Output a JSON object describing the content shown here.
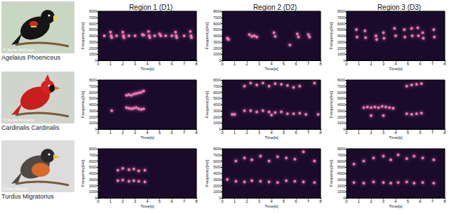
{
  "columns": [
    "Region 1 (D1)",
    "Region 2 (D2)",
    "Region 3 (D3)"
  ],
  "rows": [
    {
      "species": "Agelaius Phoeniceus",
      "credit": "© Suzie McCann"
    },
    {
      "species": "Cardinalis Cardinalis",
      "credit": "© Suzie McCann"
    },
    {
      "species": "Turdus Migratorius",
      "credit": "©Alex Eberts"
    }
  ],
  "chart_data": [
    {
      "type": "scatter",
      "x_label": "Time[s]",
      "y_label": "Frequency[Hz]",
      "xlim": [
        0,
        8
      ],
      "xticks": [
        0,
        1,
        2,
        3,
        4,
        5,
        6,
        7,
        8
      ],
      "ylim": [
        0,
        8000
      ],
      "yticks": [
        0,
        1000,
        2000,
        3000,
        4000,
        5000,
        6000,
        7000,
        8000
      ],
      "grid": false,
      "color": "#f27cb4",
      "x": [
        1.0,
        1.05,
        1.1,
        2.0,
        2.05,
        2.1,
        3.6,
        3.7,
        4.1,
        4.15,
        4.2,
        5.0,
        5.1,
        6.3,
        6.35,
        6.4,
        7.5,
        7.55,
        7.6,
        0.5,
        1.5,
        2.5,
        3.0,
        4.6,
        5.5,
        6.0,
        7.0
      ],
      "values": [
        4600,
        4000,
        3700,
        4600,
        4000,
        3700,
        4200,
        4100,
        4700,
        4000,
        3700,
        4300,
        4000,
        4600,
        4000,
        3700,
        4700,
        4000,
        3700,
        4000,
        4000,
        4000,
        4000,
        4000,
        4000,
        4000,
        4000
      ]
    },
    {
      "type": "scatter",
      "x_label": "Time[s]",
      "y_label": "Frequency[Hz]",
      "xlim": [
        0,
        8
      ],
      "xticks": [
        0,
        1,
        2,
        3,
        4,
        5,
        6,
        7,
        8
      ],
      "ylim": [
        0,
        8000
      ],
      "yticks": [
        0,
        1000,
        2000,
        3000,
        4000,
        5000,
        6000,
        7000,
        8000
      ],
      "grid": false,
      "color": "#f27cb4",
      "x": [
        0.4,
        0.5,
        2.2,
        2.4,
        2.6,
        2.8,
        4.2,
        4.3,
        5.5,
        6.1,
        6.2,
        7.0,
        7.1
      ],
      "values": [
        3600,
        3400,
        4200,
        3900,
        4000,
        3800,
        4500,
        3900,
        2500,
        4300,
        3800,
        4200,
        3800
      ]
    },
    {
      "type": "scatter",
      "x_label": "Time[s]",
      "y_label": "Frequency[Hz]",
      "xlim": [
        0,
        8
      ],
      "xticks": [
        0,
        1,
        2,
        3,
        4,
        5,
        6,
        7,
        8
      ],
      "ylim": [
        0,
        8000
      ],
      "yticks": [
        0,
        1000,
        2000,
        3000,
        4000,
        5000,
        6000,
        7000,
        8000
      ],
      "grid": false,
      "color": "#f27cb4",
      "x": [
        0.8,
        0.85,
        1.5,
        1.55,
        2.4,
        2.45,
        3.0,
        3.05,
        3.9,
        4.0,
        4.7,
        4.75,
        5.3,
        5.35,
        5.8,
        5.85,
        6.2,
        6.25,
        7.1,
        7.15
      ],
      "values": [
        5000,
        3800,
        4800,
        3700,
        4000,
        3400,
        4500,
        3600,
        5200,
        4000,
        5000,
        3800,
        5200,
        4000,
        5300,
        4000,
        4500,
        3600,
        5000,
        3800
      ]
    },
    {
      "type": "scatter",
      "x_label": "Time[s]",
      "y_label": "Frequency[Hz]",
      "xlim": [
        0,
        8
      ],
      "xticks": [
        0,
        1,
        2,
        3,
        4,
        5,
        6,
        7,
        8
      ],
      "ylim": [
        0,
        8000
      ],
      "yticks": [
        0,
        1000,
        2000,
        3000,
        4000,
        5000,
        6000,
        7000,
        8000
      ],
      "grid": false,
      "color": "#f27cb4",
      "x": [
        2.3,
        2.3,
        2.5,
        2.5,
        2.7,
        2.7,
        2.9,
        2.9,
        3.1,
        3.1,
        3.3,
        3.3,
        3.5,
        3.5,
        3.7,
        3.7,
        1.1
      ],
      "values": [
        5500,
        3500,
        5600,
        3400,
        5500,
        3300,
        5700,
        3400,
        5800,
        3500,
        5900,
        3300,
        6000,
        3200,
        6200,
        3300,
        3000
      ]
    },
    {
      "type": "scatter",
      "x_label": "Time[s]",
      "y_label": "Frequency[Hz]",
      "xlim": [
        0,
        8
      ],
      "xticks": [
        0,
        1,
        2,
        3,
        4,
        5,
        6,
        7,
        8
      ],
      "ylim": [
        0,
        8000
      ],
      "yticks": [
        0,
        1000,
        2000,
        3000,
        4000,
        5000,
        6000,
        7000,
        8000
      ],
      "grid": false,
      "color": "#f27cb4",
      "x": [
        1.8,
        1.8,
        2.3,
        2.3,
        2.8,
        2.8,
        3.3,
        3.3,
        3.8,
        3.8,
        4.3,
        4.3,
        4.8,
        4.8,
        5.3,
        5.3,
        5.8,
        5.8,
        6.3,
        6.3,
        7.5,
        0.8,
        1.0,
        4.0,
        6.8,
        7.8
      ],
      "values": [
        7000,
        3000,
        7500,
        3000,
        7200,
        2800,
        7500,
        3000,
        7000,
        2800,
        7400,
        2700,
        7300,
        2800,
        7100,
        2500,
        6800,
        2500,
        7000,
        2600,
        7500,
        2400,
        2400,
        2300,
        2400,
        2400
      ]
    },
    {
      "type": "scatter",
      "x_label": "Time[s]",
      "y_label": "Frequency[Hz]",
      "xlim": [
        0,
        8
      ],
      "xticks": [
        0,
        1,
        2,
        3,
        4,
        5,
        6,
        7,
        8
      ],
      "ylim": [
        0,
        8000
      ],
      "yticks": [
        0,
        1000,
        2000,
        3000,
        4000,
        5000,
        6000,
        7000,
        8000
      ],
      "grid": false,
      "color": "#f27cb4",
      "x": [
        1.4,
        1.7,
        2.0,
        2.3,
        2.6,
        2.9,
        3.2,
        3.5,
        3.8,
        4.9,
        4.9,
        5.3,
        5.3,
        5.7,
        5.7,
        6.1,
        6.1,
        2.0,
        3.0
      ],
      "values": [
        3500,
        3600,
        3500,
        3600,
        3500,
        3700,
        3600,
        3500,
        3400,
        7000,
        2500,
        7200,
        2400,
        7300,
        2500,
        7400,
        2600,
        2200,
        2200
      ]
    },
    {
      "type": "scatter",
      "x_label": "Time[s]",
      "y_label": "Frequency[Hz]",
      "xlim": [
        0,
        8
      ],
      "xticks": [
        0,
        1,
        2,
        3,
        4,
        5,
        6,
        7,
        8
      ],
      "ylim": [
        0,
        8000
      ],
      "yticks": [
        0,
        1000,
        2000,
        3000,
        4000,
        5000,
        6000,
        7000,
        8000
      ],
      "grid": false,
      "color": "#f27cb4",
      "x": [
        1.6,
        1.6,
        2.0,
        2.0,
        2.5,
        2.5,
        2.9,
        2.9,
        3.3,
        3.3,
        3.8,
        3.8
      ],
      "values": [
        2800,
        4500,
        2900,
        4800,
        2700,
        4600,
        2800,
        4700,
        2700,
        4400,
        2600,
        4500
      ]
    },
    {
      "type": "scatter",
      "x_label": "Time[s]",
      "y_label": "Frequency[Hz]",
      "xlim": [
        0,
        8
      ],
      "xticks": [
        0,
        1,
        2,
        3,
        4,
        5,
        6,
        7,
        8
      ],
      "ylim": [
        0,
        8000
      ],
      "yticks": [
        0,
        1000,
        2000,
        3000,
        4000,
        5000,
        6000,
        7000,
        8000
      ],
      "grid": false,
      "color": "#f27cb4",
      "x": [
        0.4,
        1.1,
        1.1,
        1.8,
        1.8,
        2.4,
        2.4,
        3.1,
        3.1,
        3.8,
        3.8,
        4.5,
        4.5,
        5.2,
        5.2,
        5.9,
        5.9,
        6.6,
        6.6,
        7.5,
        7.5
      ],
      "values": [
        3000,
        2700,
        6000,
        2600,
        6500,
        2800,
        6200,
        2700,
        6800,
        2600,
        6000,
        2500,
        6700,
        2800,
        6500,
        2700,
        6300,
        2600,
        7500,
        2500,
        6000
      ]
    },
    {
      "type": "scatter",
      "x_label": "Time[s]",
      "y_label": "Frequency[Hz]",
      "xlim": [
        0,
        8
      ],
      "xticks": [
        0,
        1,
        2,
        3,
        4,
        5,
        6,
        7,
        8
      ],
      "ylim": [
        0,
        8000
      ],
      "yticks": [
        0,
        1000,
        2000,
        3000,
        4000,
        5000,
        6000,
        7000,
        8000
      ],
      "grid": false,
      "color": "#f27cb4",
      "x": [
        0.6,
        0.6,
        1.4,
        1.4,
        2.2,
        2.2,
        3.0,
        3.0,
        3.6,
        3.6,
        4.2,
        4.2,
        4.9,
        4.9,
        5.5,
        5.5,
        6.2,
        6.2,
        7.1,
        7.1
      ],
      "values": [
        2500,
        5500,
        2400,
        6000,
        2600,
        6500,
        2500,
        6800,
        2400,
        6200,
        2500,
        7000,
        2600,
        6400,
        2400,
        6800,
        2500,
        6500,
        2400,
        6200
      ]
    }
  ]
}
